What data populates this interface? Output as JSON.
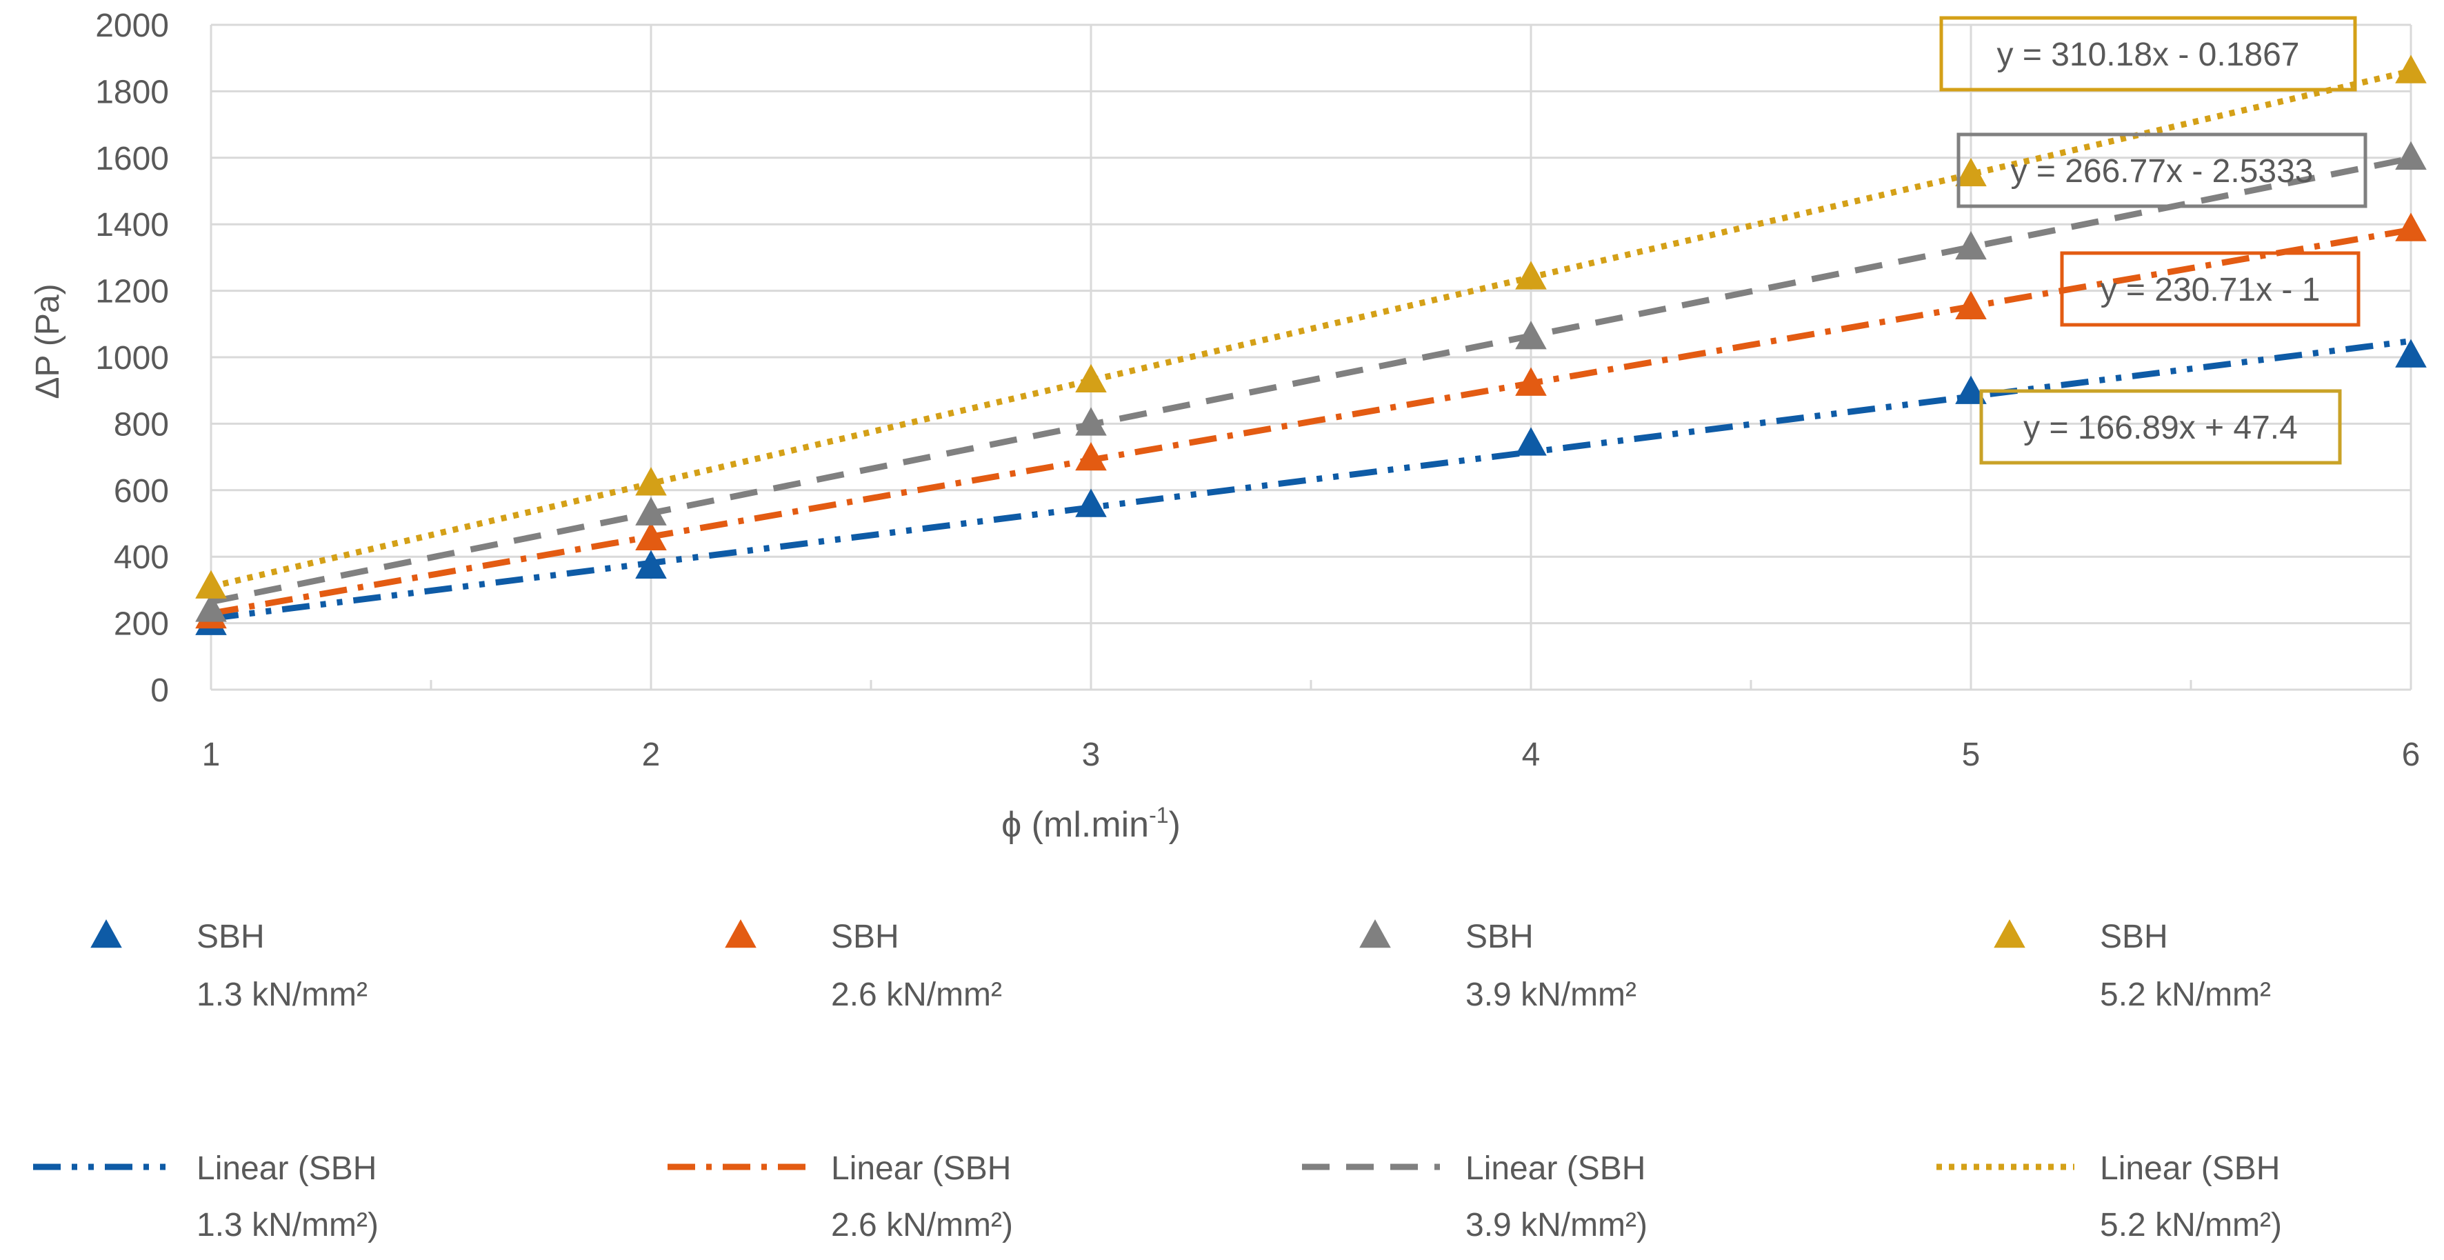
{
  "chart_data": {
    "type": "scatter",
    "title": "",
    "xlabel": "ϕ (ml.min",
    "xlabel_sup": "-1",
    "xlabel_close": ")",
    "ylabel": "ΔP (Pa)",
    "xlim": [
      1,
      6
    ],
    "ylim": [
      0,
      2000
    ],
    "x_ticks": [
      1,
      2,
      3,
      4,
      5,
      6
    ],
    "y_ticks": [
      0,
      200,
      400,
      600,
      800,
      1000,
      1200,
      1400,
      1600,
      1800,
      2000
    ],
    "x_minor_step": 0.5,
    "grid": true,
    "legend_position": "bottom",
    "x": [
      1,
      2,
      3,
      4,
      5,
      6
    ],
    "series": [
      {
        "name": "SBH 1.3 kN/mm²",
        "legend_line1": "SBH",
        "legend_line2": "1.3 kN/mm²",
        "values": [
          200,
          370,
          555,
          740,
          895,
          1005
        ],
        "color": "#0E5BA6",
        "marker": "triangle",
        "trend": {
          "slope": 166.89,
          "intercept": 47.4,
          "label": "y = 166.89x + 47.4",
          "label_box_color": "#C9A227",
          "dash": "dash-dot-dot",
          "legend_line1": "Linear (SBH",
          "legend_line2": "1.3 kN/mm²)"
        }
      },
      {
        "name": "SBH 2.6 kN/mm²",
        "legend_line1": "SBH",
        "legend_line2": "2.6 kN/mm²",
        "values": [
          220,
          455,
          695,
          920,
          1150,
          1385
        ],
        "color": "#E35B12",
        "marker": "triangle",
        "trend": {
          "slope": 230.71,
          "intercept": -1,
          "label": "y = 230.71x - 1",
          "label_box_color": "#E35B12",
          "dash": "dash-dot",
          "legend_line1": "Linear (SBH",
          "legend_line2": "2.6 kN/mm²)"
        }
      },
      {
        "name": "SBH 3.9 kN/mm²",
        "legend_line1": "SBH",
        "legend_line2": "3.9 kN/mm²",
        "values": [
          240,
          530,
          800,
          1060,
          1330,
          1600
        ],
        "color": "#808080",
        "marker": "triangle",
        "trend": {
          "slope": 266.77,
          "intercept": -2.5333,
          "label": "y = 266.77x - 2.5333",
          "label_box_color": "#808080",
          "dash": "dash",
          "legend_line1": "Linear (SBH",
          "legend_line2": "3.9 kN/mm²)"
        }
      },
      {
        "name": "SBH 5.2 kN/mm²",
        "legend_line1": "SBH",
        "legend_line2": "5.2 kN/mm²",
        "values": [
          310,
          620,
          930,
          1240,
          1550,
          1860
        ],
        "color": "#D4A017",
        "marker": "triangle",
        "trend": {
          "slope": 310.18,
          "intercept": -0.1867,
          "label": "y = 310.18x - 0.1867",
          "label_box_color": "#D4A017",
          "dash": "dot",
          "legend_line1": "Linear (SBH",
          "legend_line2": "5.2 kN/mm²)"
        }
      }
    ]
  }
}
